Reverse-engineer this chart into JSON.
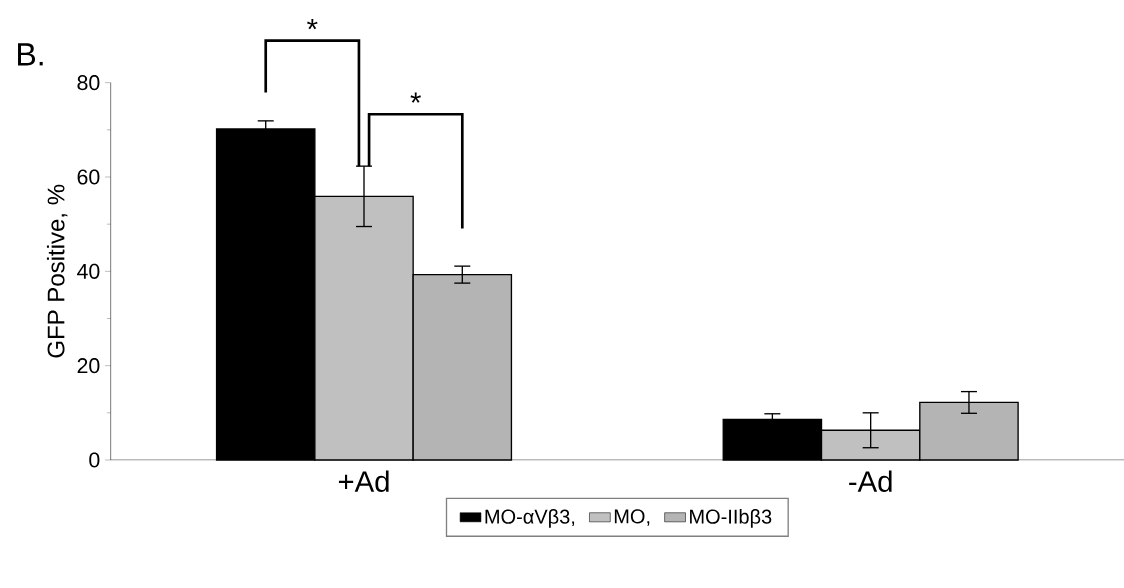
{
  "chart_data": {
    "type": "bar",
    "title": "B.",
    "ylabel": "GFP Positive, %",
    "categories": [
      "+Ad",
      "-Ad"
    ],
    "series": [
      {
        "name": "MO-αVβ3,",
        "color": "#000000",
        "values": [
          70.2,
          8.6
        ],
        "errors": [
          1.7,
          1.2
        ]
      },
      {
        "name": "MO,",
        "color": "#c0c0c0",
        "values": [
          55.9,
          6.3
        ],
        "errors": [
          6.4,
          3.7
        ]
      },
      {
        "name": "MO-IIbβ3",
        "color": "#b4b4b4",
        "values": [
          39.3,
          12.2
        ],
        "errors": [
          1.8,
          2.3
        ]
      }
    ],
    "ylim": [
      0,
      80
    ],
    "yticks": [
      0,
      20,
      40,
      60,
      80
    ],
    "legend": "bottom",
    "grid": false,
    "annotations": [
      "*",
      "*"
    ]
  }
}
